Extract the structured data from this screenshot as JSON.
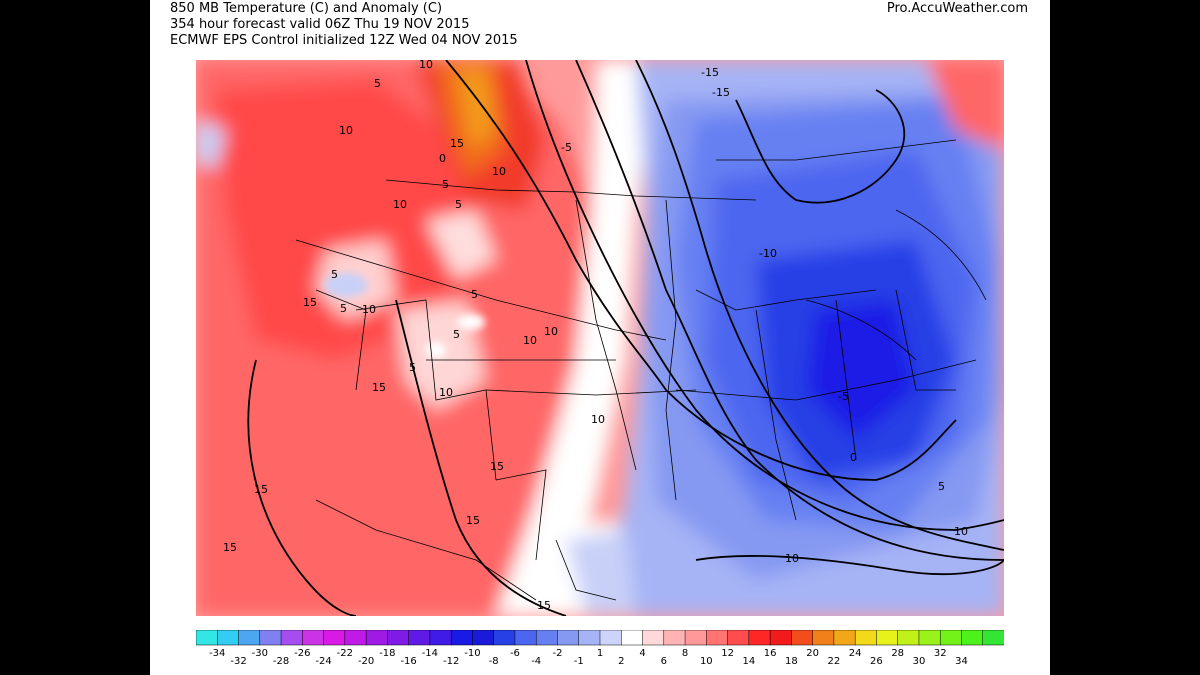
{
  "header": {
    "line1": "850 MB Temperature (C) and Anomaly (C)",
    "line2": "354 hour forecast valid 06Z Thu 19 NOV 2015",
    "line3": "ECMWF EPS Control initialized 12Z Wed 04 NOV 2015",
    "brand": "Pro.AccuWeather.com"
  },
  "contour_labels": [
    {
      "text": "10"
    },
    {
      "text": "5"
    },
    {
      "text": "10"
    },
    {
      "text": "15"
    },
    {
      "text": "0"
    },
    {
      "text": "5"
    },
    {
      "text": "10"
    },
    {
      "text": "10"
    },
    {
      "text": "5"
    },
    {
      "text": "5"
    },
    {
      "text": "5"
    },
    {
      "text": "15"
    },
    {
      "text": "5"
    },
    {
      "text": "10"
    },
    {
      "text": "5"
    },
    {
      "text": "5"
    },
    {
      "text": "10"
    },
    {
      "text": "10"
    },
    {
      "text": "15"
    },
    {
      "text": "10"
    },
    {
      "text": "10"
    },
    {
      "text": "15"
    },
    {
      "text": "15"
    },
    {
      "text": "15"
    },
    {
      "text": "15"
    },
    {
      "text": "15"
    },
    {
      "text": "-5"
    },
    {
      "text": "-15"
    },
    {
      "text": "-15"
    },
    {
      "text": "-10"
    },
    {
      "text": "-5"
    },
    {
      "text": "0"
    },
    {
      "text": "5"
    },
    {
      "text": "10"
    },
    {
      "text": "10"
    }
  ],
  "colorbar": {
    "colors": [
      "#33e6e6",
      "#33ccf2",
      "#4da6f2",
      "#8080f2",
      "#a64df2",
      "#cc33e6",
      "#d91ae6",
      "#bf1ae6",
      "#a01ae6",
      "#801ae6",
      "#601ae6",
      "#401ae6",
      "#1a1ae6",
      "#1a1ad9",
      "#2640e6",
      "#4d66f0",
      "#6680f2",
      "#8599f2",
      "#a6b3f5",
      "#ccd4fa",
      "#ffffff",
      "#ffd9d9",
      "#ffb3b3",
      "#ff9999",
      "#ff7373",
      "#ff4d4d",
      "#ff2626",
      "#f21a1a",
      "#f24d1a",
      "#f2801a",
      "#f2a61a",
      "#f2d91a",
      "#e6f21a",
      "#c0f21a",
      "#99f21a",
      "#73f21a",
      "#4df21a",
      "#33e633"
    ],
    "ticks_lower": [
      "-34",
      "-32",
      "-30",
      "-28",
      "-26",
      "-24",
      "-22",
      "-20",
      "-18",
      "-16",
      "-14",
      "-12",
      "-10",
      "-8",
      "-6",
      "-4",
      "-2",
      "-1",
      "1",
      "2",
      "4",
      "6",
      "8",
      "10",
      "12",
      "14",
      "16",
      "18",
      "20",
      "22",
      "24",
      "26",
      "28",
      "30",
      "32",
      "34"
    ]
  }
}
